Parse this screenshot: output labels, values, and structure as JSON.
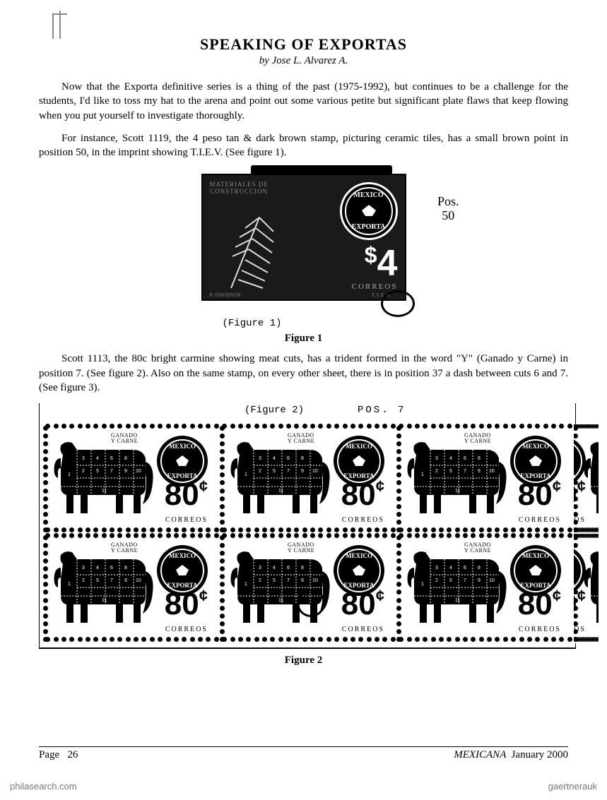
{
  "title": "SPEAKING OF EXPORTAS",
  "byline": "by Jose L. Alvarez A.",
  "para1": "Now that the Exporta definitive series is a thing of the past (1975-1992), but continues to be a challenge for the students, I'd like to toss my hat to the arena and point out some various petite but significant plate flaws that keep flowing when you put yourself to investigate thoroughly.",
  "para2": "For instance, Scott 1119, the 4 peso tan & dark brown stamp, picturing ceramic tiles, has a small brown point in position 50, in the imprint showing T.I.E.V. (See figure 1).",
  "fig1": {
    "stamp_top_label": "MATERIALES DE\nCONSTRUCCION",
    "seal_top": "MEXICO",
    "seal_bottom": "EXPORTA",
    "price": "$4",
    "correos": "CORREOS",
    "tiev": "T. I. E. V.",
    "artist": "R. DAVIDSON",
    "pos_note": "Pos.\n50",
    "hand_label": "(Figure 1)",
    "caption": "Figure 1"
  },
  "para3": "Scott 1113, the 80c bright carmine showing meat cuts, has a trident formed in the word \"Y\" (Ganado y Carne) in position 7. (See figure 2). Also on the same stamp, on every other sheet, there is in position 37 a dash between cuts 6 and 7. (See figure 3).",
  "fig2": {
    "hand_label": "(Figure 2)",
    "pos_note": "POS. 7",
    "ganado": "GANADO\nY CARNE",
    "seal_top": "MEXICO",
    "seal_bottom": "EXPORTA",
    "price": "80",
    "cents": "¢",
    "correos": "CORREOS",
    "cow_cuts": [
      "1",
      "2",
      "3",
      "4",
      "5",
      "6",
      "7",
      "8",
      "9",
      "10",
      "11"
    ],
    "caption": "Figure 2"
  },
  "footer": {
    "page_label": "Page",
    "page_num": "26",
    "journal": "MEXICANA",
    "date": "January 2000"
  },
  "watermarks": {
    "bl": "philasearch.com",
    "br": "gaertnerauk"
  }
}
